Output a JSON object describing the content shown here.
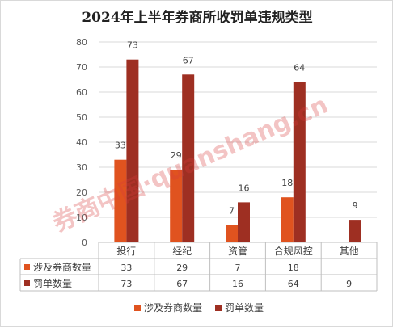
{
  "chart_data": {
    "type": "bar",
    "title": "2024年上半年券商所收罚单违规类型",
    "categories": [
      "投行",
      "经纪",
      "资管",
      "合规风控",
      "其他"
    ],
    "series": [
      {
        "name": "涉及券商数量",
        "values": [
          33,
          29,
          7,
          18,
          null
        ],
        "color": "#e0531f",
        "table_values": [
          "33",
          "29",
          "7",
          "18",
          ""
        ]
      },
      {
        "name": "罚单数量",
        "values": [
          73,
          67,
          16,
          64,
          9
        ],
        "color": "#9e2f22",
        "table_values": [
          "73",
          "67",
          "16",
          "64",
          "9"
        ]
      }
    ],
    "ylim": [
      0,
      80
    ],
    "yticks": [
      0,
      10,
      20,
      30,
      40,
      50,
      60,
      70,
      80
    ],
    "data_labels": true,
    "data_table": true,
    "legend_position": "bottom",
    "grid": true
  },
  "watermark": "券商中国·quanshang.cn"
}
